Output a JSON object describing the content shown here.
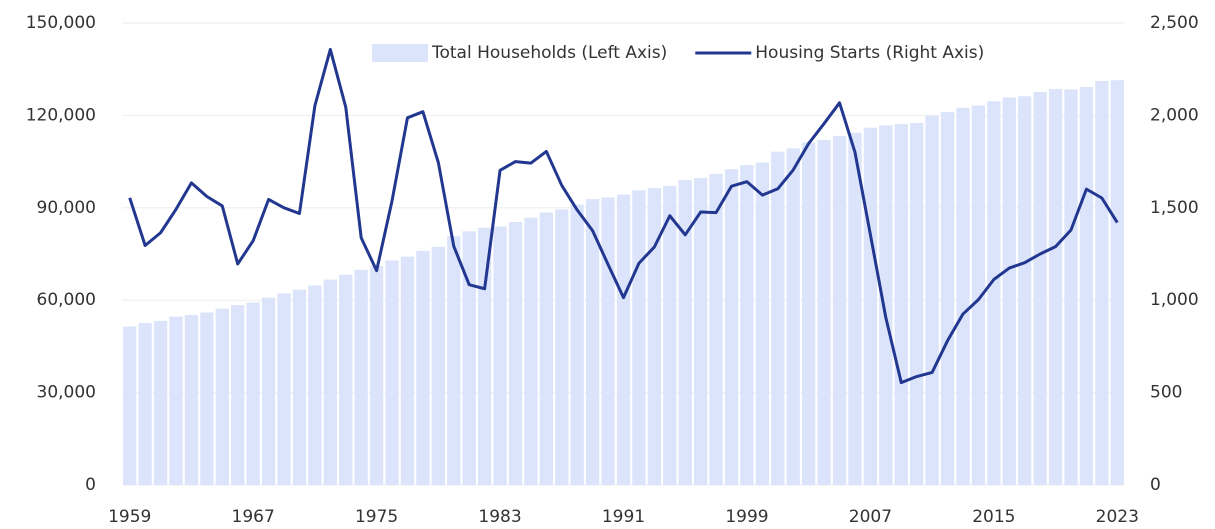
{
  "chart_data": {
    "type": "bar_line",
    "categories": [
      "1959",
      null,
      null,
      null,
      null,
      null,
      null,
      null,
      "1967",
      null,
      null,
      null,
      null,
      null,
      null,
      null,
      "1975",
      null,
      null,
      null,
      null,
      null,
      null,
      null,
      "1983",
      null,
      null,
      null,
      null,
      null,
      null,
      null,
      "1991",
      null,
      null,
      null,
      null,
      null,
      null,
      null,
      "1999",
      null,
      null,
      null,
      null,
      null,
      null,
      null,
      "2007",
      null,
      null,
      null,
      null,
      null,
      null,
      null,
      "2015",
      null,
      null,
      null,
      null,
      null,
      null,
      null,
      "2023"
    ],
    "series": [
      {
        "name": "Total Households (Left Axis)",
        "color": "#dbe4fb",
        "kind": "bar",
        "values": [
          51435,
          52610,
          53291,
          54652,
          55189,
          55996,
          57251,
          58406,
          59236,
          60813,
          62214,
          63401,
          64778,
          66676,
          68251,
          69859,
          71120,
          72867,
          74142,
          76030,
          77330,
          80776,
          82368,
          83527,
          83918,
          85407,
          86789,
          88458,
          89479,
          91066,
          92830,
          93347,
          94312,
          95669,
          96426,
          97107,
          98990,
          99627,
          101018,
          102528,
          103874,
          104705,
          108209,
          109297,
          111278,
          112000,
          113343,
          114384,
          116011,
          116783,
          117181,
          117538,
          119927,
          121084,
          122459,
          123229,
          124587,
          125819,
          126224,
          127586,
          128579,
          128451,
          129224,
          131202,
          131434
        ]
      },
      {
        "name": "Housing Starts (Right Axis)",
        "color": "#22378f",
        "kind": "line",
        "axis": "y2",
        "values": [
          1554,
          1296,
          1365,
          1492,
          1635,
          1561,
          1510,
          1196,
          1322,
          1545,
          1500,
          1469,
          2052,
          2357,
          2045,
          1338,
          1160,
          1538,
          1987,
          2020,
          1745,
          1292,
          1084,
          1062,
          1703,
          1750,
          1742,
          1805,
          1621,
          1488,
          1376,
          1193,
          1014,
          1200,
          1288,
          1457,
          1354,
          1477,
          1474,
          1617,
          1641,
          1569,
          1603,
          1705,
          1848,
          1956,
          2068,
          1801,
          1355,
          906,
          554,
          587,
          609,
          781,
          925,
          1003,
          1112,
          1174,
          1203,
          1250,
          1290,
          1380,
          1601,
          1553,
          1420
        ]
      }
    ],
    "ylim": [
      0,
      150000
    ],
    "yticks": [
      0,
      {
        "value": 30000,
        "label": "30,000"
      },
      {
        "value": 60000,
        "label": "60,000"
      },
      {
        "value": 90000,
        "label": "90,000"
      },
      {
        "value": 120000,
        "label": "120,000"
      },
      {
        "value": 150000,
        "label": "150,000"
      }
    ],
    "y2lim": [
      0,
      2500
    ],
    "y2ticks": [
      0,
      500,
      {
        "value": 1000,
        "label": "1,000"
      },
      {
        "value": 1500,
        "label": "1,500"
      },
      {
        "value": 2000,
        "label": "2,000"
      },
      {
        "value": 2500,
        "label": "2,500"
      }
    ],
    "legend": "top"
  }
}
